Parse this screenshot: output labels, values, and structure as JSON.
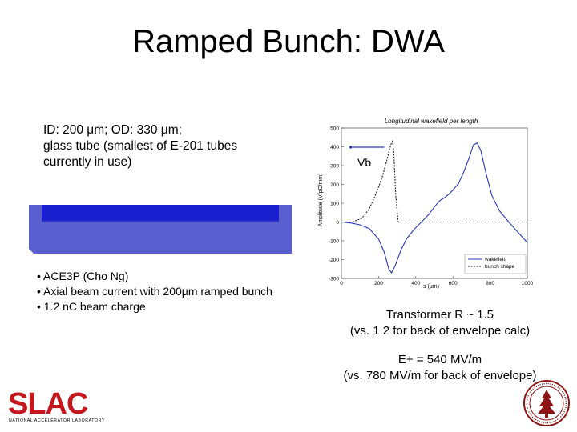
{
  "slide": {
    "title": "Ramped Bunch: DWA",
    "description_lines": [
      "ID:  200 μm;  OD: 330 μm;",
      "glass tube (smallest of E-201 tubes",
      "currently in use)"
    ],
    "bullets": [
      "• ACE3P (Cho Ng)",
      "• Axial beam current with 200μm ramped bunch",
      "• 1.2 nC beam charge"
    ],
    "result_lines": [
      "Transformer R ~ 1.5",
      "(vs. 1.2 for back of envelope calc)"
    ],
    "field_lines": [
      "E+ = 540 MV/m",
      "(vs. 780 MV/m for back of envelope)"
    ],
    "logo_text": "SLAC",
    "logo_subtext": "NATIONAL ACCELERATOR LABORATORY",
    "colors": {
      "tube_outer": "#5a5fd0",
      "tube_inner": "#1a1fcf",
      "slac_red": "#c4181d",
      "wakefield": "#2b36b8"
    }
  },
  "chart_data": {
    "type": "line",
    "title": "Longitudinal wakefield per length",
    "xlabel": "s (μm)",
    "ylabel": "Amplitude (V/pC/mm)",
    "xlim": [
      0,
      1000
    ],
    "ylim": [
      -300,
      500
    ],
    "x_ticks": [
      "0",
      "200",
      "400",
      "600",
      "800",
      "1000"
    ],
    "y_ticks": [
      "500",
      "400",
      "300",
      "200",
      "100",
      "0",
      "-100",
      "-200",
      "-300"
    ],
    "annotation": "Vb",
    "legend_position": "bottom-right",
    "series": [
      {
        "name": "wakefield",
        "style": "solid",
        "points": [
          [
            0,
            0
          ],
          [
            50,
            -5
          ],
          [
            100,
            -15
          ],
          [
            150,
            -35
          ],
          [
            200,
            -90
          ],
          [
            230,
            -160
          ],
          [
            255,
            -250
          ],
          [
            270,
            -270
          ],
          [
            290,
            -230
          ],
          [
            320,
            -150
          ],
          [
            350,
            -90
          ],
          [
            390,
            -40
          ],
          [
            430,
            0
          ],
          [
            470,
            40
          ],
          [
            500,
            80
          ],
          [
            530,
            115
          ],
          [
            555,
            130
          ],
          [
            580,
            150
          ],
          [
            600,
            170
          ],
          [
            630,
            205
          ],
          [
            660,
            270
          ],
          [
            690,
            350
          ],
          [
            710,
            410
          ],
          [
            730,
            420
          ],
          [
            750,
            380
          ],
          [
            780,
            250
          ],
          [
            810,
            140
          ],
          [
            850,
            60
          ],
          [
            900,
            0
          ],
          [
            950,
            -55
          ],
          [
            1000,
            -110
          ]
        ]
      },
      {
        "name": "bunch shape",
        "style": "dashed",
        "points": [
          [
            0,
            0
          ],
          [
            60,
            0
          ],
          [
            110,
            20
          ],
          [
            150,
            70
          ],
          [
            190,
            160
          ],
          [
            220,
            240
          ],
          [
            245,
            330
          ],
          [
            265,
            410
          ],
          [
            275,
            430
          ],
          [
            282,
            370
          ],
          [
            292,
            150
          ],
          [
            305,
            0
          ],
          [
            1000,
            0
          ]
        ]
      }
    ]
  }
}
